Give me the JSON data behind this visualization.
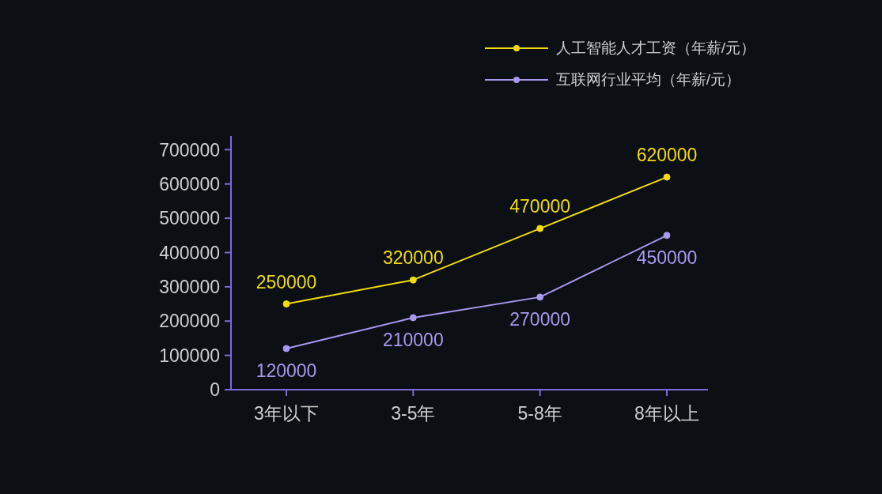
{
  "chart_data": {
    "type": "line",
    "categories": [
      "3年以下",
      "3-5年",
      "5-8年",
      "8年以上"
    ],
    "series": [
      {
        "name": "人工智能人才工资（年薪/元）",
        "color": "#f2dc0a",
        "values": [
          250000,
          320000,
          470000,
          620000
        ]
      },
      {
        "name": "互联网行业平均（年薪/元）",
        "color": "#a998ee",
        "values": [
          120000,
          210000,
          270000,
          450000
        ]
      }
    ],
    "ylim": [
      0,
      740000
    ],
    "yticks": [
      0,
      100000,
      200000,
      300000,
      400000,
      500000,
      600000,
      700000
    ],
    "legend": "top right",
    "marker": "circle",
    "line_style": "solid",
    "data_labels": true
  }
}
